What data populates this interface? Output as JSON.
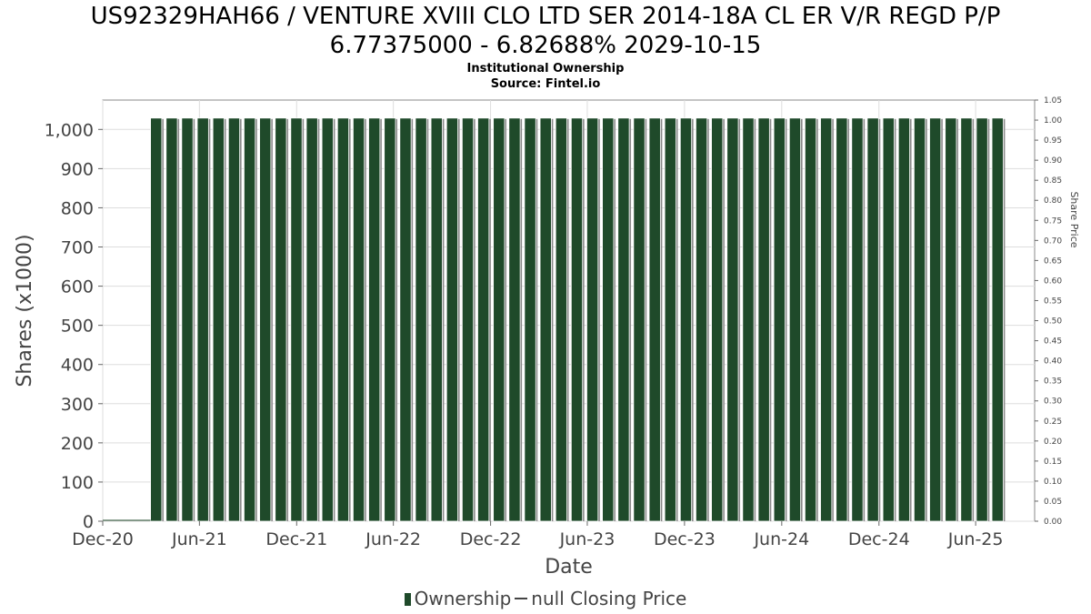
{
  "title_line1": "US92329HAH66 / VENTURE XVIII CLO LTD SER 2014-18A CL ER V/R REGD P/P",
  "title_line2": "6.77375000 - 6.82688% 2029-10-15",
  "subtitle1": "Institutional Ownership",
  "subtitle2": "Source: Fintel.io",
  "legend": {
    "ownership": "Ownership",
    "price": "null Closing Price"
  },
  "colors": {
    "bar": "#1f4a2a",
    "bar_shadow": "#888888",
    "grid": "#dddddd"
  },
  "chart_data": {
    "type": "bar",
    "xlabel": "Date",
    "ylabel": "Shares (x1000)",
    "y2label": "Share Price",
    "ylim": [
      0,
      1075
    ],
    "y2lim": [
      0,
      1.05
    ],
    "x_range": [
      "2020-12-01",
      "2025-09-20"
    ],
    "grid": true,
    "legend_position": "bottom",
    "x_ticks": [
      "Dec-20",
      "Jun-21",
      "Dec-21",
      "Jun-22",
      "Dec-22",
      "Jun-23",
      "Dec-23",
      "Jun-24",
      "Dec-24",
      "Jun-25"
    ],
    "y_ticks": [
      "0",
      "100",
      "200",
      "300",
      "400",
      "500",
      "600",
      "700",
      "800",
      "900",
      "1,000"
    ],
    "y2_ticks": [
      "0.00",
      "0.05",
      "0.10",
      "0.15",
      "0.20",
      "0.25",
      "0.30",
      "0.35",
      "0.40",
      "0.45",
      "0.50",
      "0.55",
      "0.60",
      "0.65",
      "0.70",
      "0.75",
      "0.80",
      "0.85",
      "0.90",
      "0.95",
      "1.00",
      "1.05"
    ],
    "series": [
      {
        "name": "Ownership",
        "values_note_free": true,
        "start_date": "2021-03-01",
        "end_date": "2025-07-31",
        "bar_count": 55,
        "value": 1029
      }
    ]
  }
}
